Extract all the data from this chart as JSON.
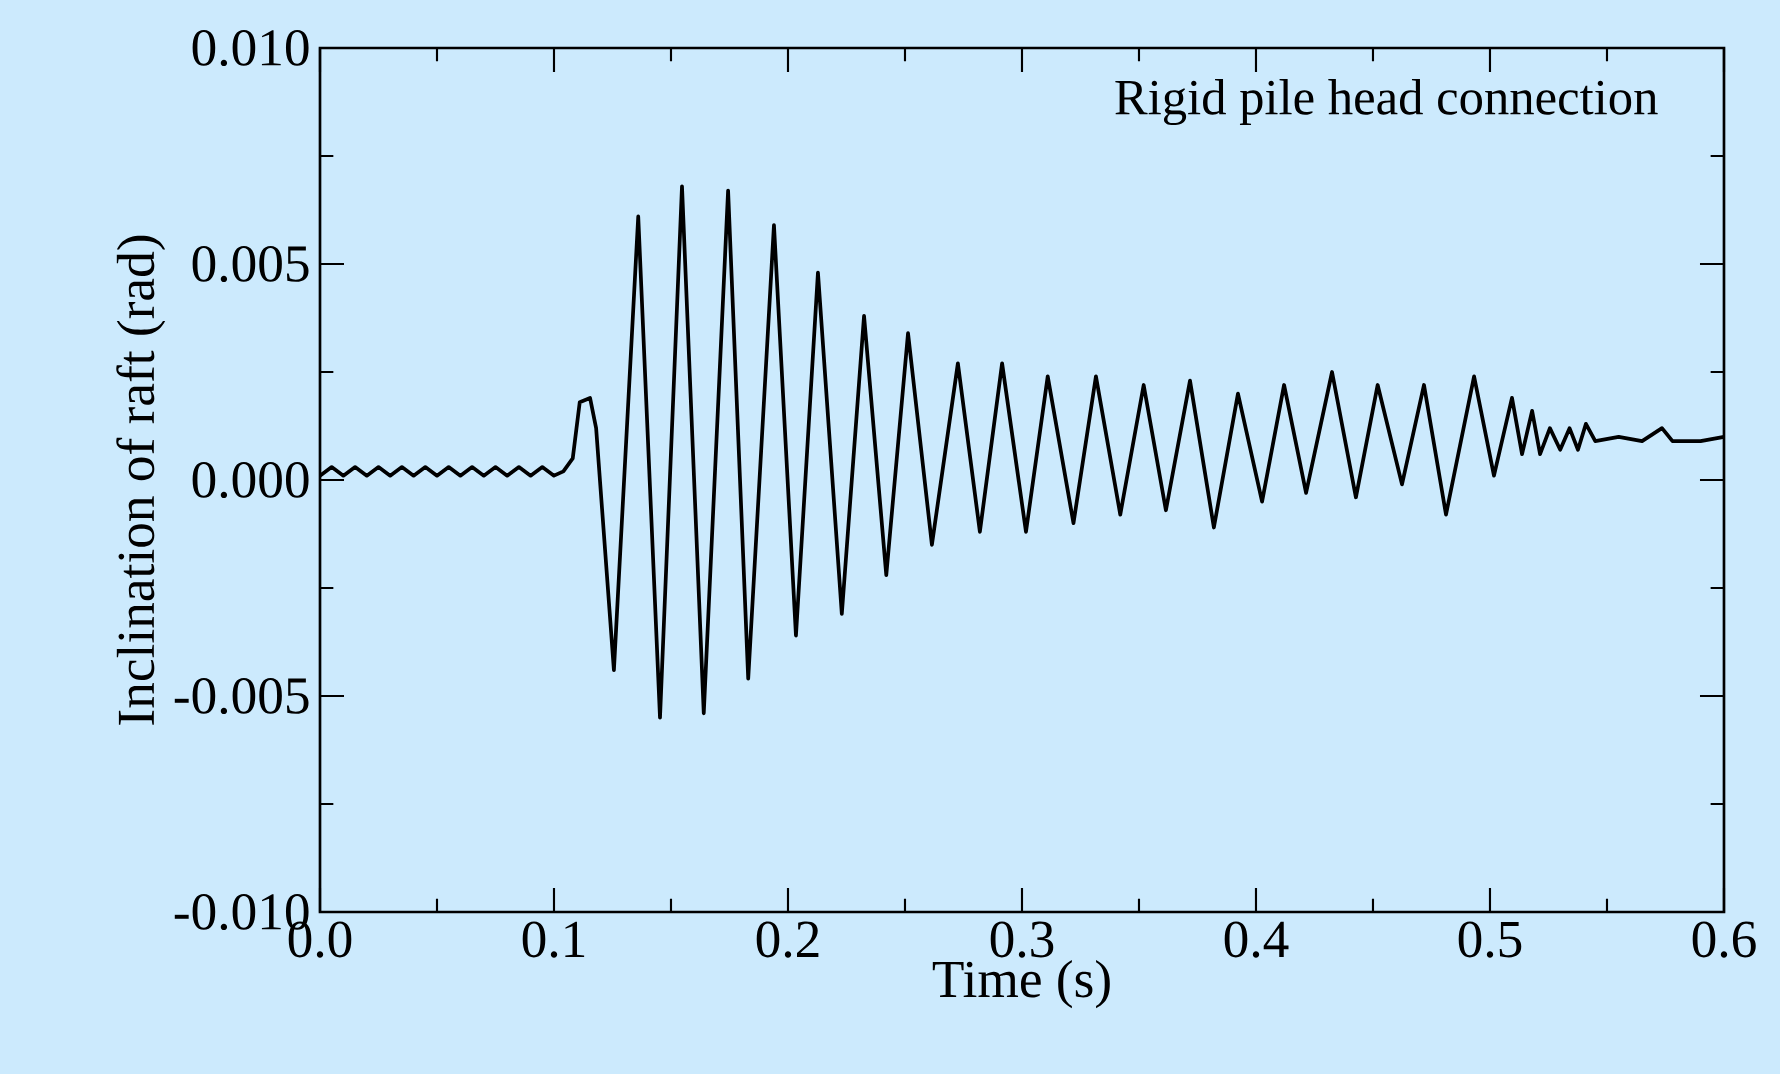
{
  "chart_data": {
    "type": "line",
    "xlabel": "Time (s)",
    "ylabel": "Inclination of raft (rad)",
    "annotations": [
      "Rigid pile head connection"
    ],
    "color": "#000000",
    "xlim": [
      0,
      0.6
    ],
    "ylim": [
      -0.01,
      0.01
    ],
    "xticks": [
      {
        "value": 0,
        "label": "0.0"
      },
      {
        "value": 0.1,
        "label": "0.1"
      },
      {
        "value": 0.2,
        "label": "0.2"
      },
      {
        "value": 0.3,
        "label": "0.3"
      },
      {
        "value": 0.4,
        "label": "0.4"
      },
      {
        "value": 0.5,
        "label": "0.5"
      },
      {
        "value": 0.6,
        "label": "0.6"
      }
    ],
    "yticks": [
      {
        "value": -0.01,
        "label": "-0.010"
      },
      {
        "value": -0.005,
        "label": "-0.005"
      },
      {
        "value": 0,
        "label": "0.000"
      },
      {
        "value": 0.005,
        "label": "0.005"
      },
      {
        "value": 0.01,
        "label": "0.010"
      }
    ],
    "x": [
      0,
      0.005,
      0.01,
      0.015,
      0.02,
      0.025,
      0.03,
      0.035,
      0.04,
      0.045,
      0.05,
      0.055,
      0.06,
      0.065,
      0.07,
      0.075,
      0.08,
      0.085,
      0.09,
      0.095,
      0.1,
      0.104,
      0.108,
      0.111,
      0.1154,
      0.118,
      0.1256,
      0.136,
      0.1453,
      0.1547,
      0.164,
      0.1744,
      0.183,
      0.194,
      0.2034,
      0.2128,
      0.223,
      0.2325,
      0.242,
      0.2513,
      0.2615,
      0.2726,
      0.282,
      0.2915,
      0.3017,
      0.311,
      0.322,
      0.3316,
      0.342,
      0.352,
      0.3615,
      0.3718,
      0.382,
      0.3923,
      0.4026,
      0.412,
      0.4214,
      0.4325,
      0.4427,
      0.452,
      0.4624,
      0.4718,
      0.4812,
      0.4932,
      0.5017,
      0.5094,
      0.5137,
      0.518,
      0.5214,
      0.5256,
      0.53,
      0.534,
      0.5376,
      0.541,
      0.545,
      0.555,
      0.565,
      0.5735,
      0.578,
      0.59,
      0.6
    ],
    "values": [
      0.0001,
      0.0003,
      0.0001,
      0.0003,
      0.0001,
      0.0003,
      0.0001,
      0.0003,
      0.0001,
      0.0003,
      0.0001,
      0.0003,
      0.0001,
      0.0003,
      0.0001,
      0.0003,
      0.0001,
      0.0003,
      0.0001,
      0.0003,
      0.0001,
      0.0002,
      0.0005,
      0.0018,
      0.0019,
      0.0012,
      -0.0044,
      0.0061,
      -0.0055,
      0.0068,
      -0.0054,
      0.0067,
      -0.0046,
      0.0059,
      -0.0036,
      0.0048,
      -0.0031,
      0.0038,
      -0.0022,
      0.0034,
      -0.0015,
      0.0027,
      -0.0012,
      0.0027,
      -0.0012,
      0.0024,
      -0.001,
      0.0024,
      -0.0008,
      0.0022,
      -0.0007,
      0.0023,
      -0.0011,
      0.002,
      -0.0005,
      0.0022,
      -0.0003,
      0.0025,
      -0.0004,
      0.0022,
      -0.0001,
      0.0022,
      -0.0008,
      0.0024,
      0.0001,
      0.0019,
      0.0006,
      0.0016,
      0.0006,
      0.0012,
      0.0007,
      0.0012,
      0.0007,
      0.0013,
      0.0009,
      0.001,
      0.0009,
      0.0012,
      0.0009,
      0.0009,
      0.001
    ]
  }
}
